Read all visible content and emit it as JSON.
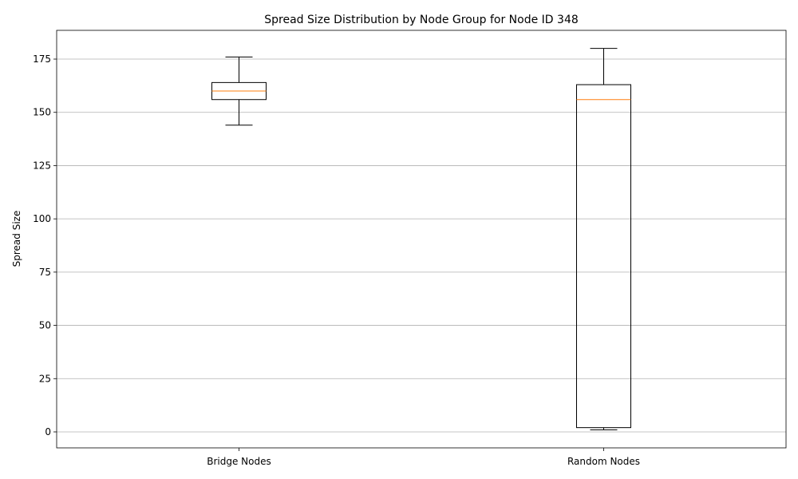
{
  "chart_data": {
    "type": "box",
    "title": "Spread Size Distribution by Node Group for Node ID 348",
    "xlabel": "",
    "ylabel": "Spread Size",
    "ylim": [
      -7.5,
      188.5
    ],
    "yticks": [
      0,
      25,
      50,
      75,
      100,
      125,
      150,
      175
    ],
    "grid": "y",
    "categories": [
      "Bridge Nodes",
      "Random Nodes"
    ],
    "boxes": [
      {
        "category": "Bridge Nodes",
        "whisker_low": 144,
        "q1": 156,
        "median": 160,
        "q3": 164,
        "whisker_high": 176
      },
      {
        "category": "Random Nodes",
        "whisker_low": 1,
        "q1": 2,
        "median": 156,
        "q3": 163,
        "whisker_high": 180
      }
    ],
    "colors": {
      "box": "#000000",
      "median": "#ff7f0e",
      "grid": "#b0b0b0"
    }
  }
}
